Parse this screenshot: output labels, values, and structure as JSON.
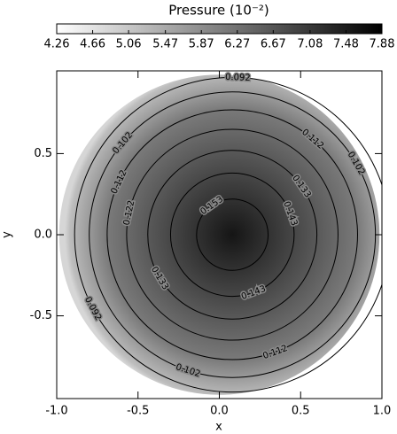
{
  "chart_data": {
    "type": "contour",
    "colorbar": {
      "title": "Pressure (10⁻²)",
      "lim": [
        4.26,
        7.88
      ],
      "ticks": [
        4.26,
        4.66,
        5.06,
        5.47,
        5.87,
        6.27,
        6.67,
        7.08,
        7.48,
        7.88
      ]
    },
    "xlabel": "x",
    "ylabel": "y",
    "xlim": [
      -1.0,
      1.0
    ],
    "ylim": [
      -1.01,
      1.01
    ],
    "xticks": [
      {
        "value": -1.0,
        "label": "-1.0"
      },
      {
        "value": -0.5,
        "label": "-0.5"
      },
      {
        "value": 0,
        "label": "0.0"
      },
      {
        "value": 0.5,
        "label": "0.5"
      },
      {
        "value": 1.0,
        "label": "1.0"
      }
    ],
    "yticks": [
      {
        "value": -0.5,
        "label": "-0.5"
      },
      {
        "value": 0,
        "label": "0.0"
      },
      {
        "value": 0.5,
        "label": "0.5"
      }
    ],
    "contours": [
      {
        "level": 0.092,
        "cx": 0.08,
        "cy": 0,
        "r": 0.97
      },
      {
        "level": 0.102,
        "cx": 0.08,
        "cy": 0,
        "r": 0.88
      },
      {
        "level": 0.112,
        "cx": 0.08,
        "cy": 0,
        "r": 0.77
      },
      {
        "level": 0.122,
        "cx": 0.08,
        "cy": 0,
        "r": 0.65
      },
      {
        "level": 0.133,
        "cx": 0.08,
        "cy": 0,
        "r": 0.52
      },
      {
        "level": 0.143,
        "cx": 0.08,
        "cy": 0,
        "r": 0.38
      },
      {
        "level": 0.153,
        "cx": 0.08,
        "cy": 0,
        "r": 0.22
      }
    ],
    "color": "#000000"
  }
}
